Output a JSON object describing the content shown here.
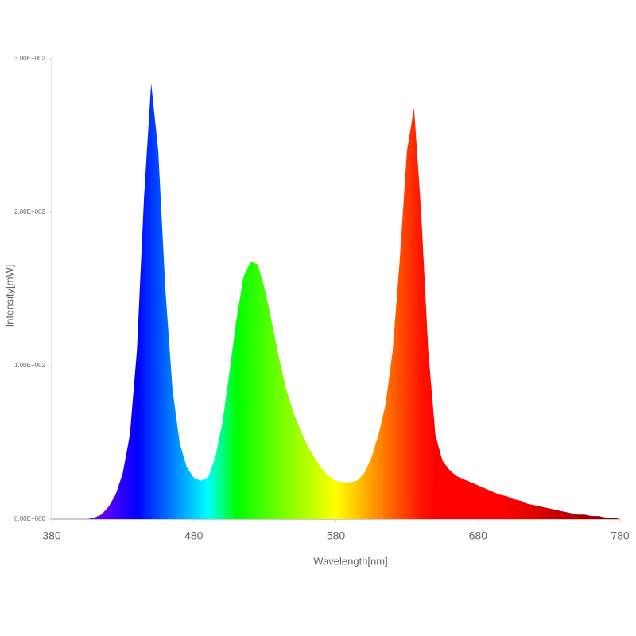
{
  "chart_data": {
    "type": "spectrum-area",
    "x_label": "Wavelength[nm]",
    "y_label": "Intensity[mW]",
    "x": [
      380,
      385,
      390,
      395,
      400,
      405,
      410,
      415,
      420,
      425,
      430,
      435,
      440,
      445,
      450,
      455,
      460,
      465,
      470,
      475,
      480,
      485,
      490,
      495,
      500,
      505,
      510,
      515,
      520,
      525,
      530,
      535,
      540,
      545,
      550,
      555,
      560,
      565,
      570,
      575,
      580,
      585,
      590,
      595,
      600,
      605,
      610,
      615,
      620,
      625,
      630,
      635,
      640,
      645,
      650,
      655,
      660,
      665,
      670,
      675,
      680,
      685,
      690,
      695,
      700,
      705,
      710,
      715,
      720,
      725,
      730,
      735,
      740,
      745,
      750,
      755,
      760,
      765,
      770,
      775,
      780
    ],
    "values": [
      0,
      0,
      0,
      0,
      0,
      0,
      1,
      3,
      8,
      16,
      30,
      55,
      110,
      210,
      284,
      240,
      150,
      85,
      50,
      34,
      27,
      25,
      27,
      40,
      62,
      95,
      130,
      158,
      168,
      166,
      150,
      128,
      105,
      85,
      70,
      58,
      48,
      40,
      33,
      28,
      25,
      24,
      24,
      25,
      30,
      40,
      55,
      75,
      110,
      170,
      240,
      268,
      200,
      110,
      55,
      38,
      32,
      28,
      26,
      24,
      22,
      20,
      18,
      16,
      15,
      13,
      12,
      10,
      9,
      8,
      7,
      6,
      5,
      4,
      3,
      3,
      2,
      2,
      1,
      1,
      0
    ],
    "xlim": [
      380,
      780
    ],
    "xticks": [
      380,
      480,
      580,
      680,
      780
    ],
    "ylim": [
      0,
      300
    ],
    "yticks": [
      {
        "value": 0,
        "label": "0.00E+000"
      },
      {
        "value": 100,
        "label": "1.00E+002"
      },
      {
        "value": 200,
        "label": "2.00E+002"
      },
      {
        "value": 300,
        "label": "3.00E+002"
      }
    ]
  }
}
